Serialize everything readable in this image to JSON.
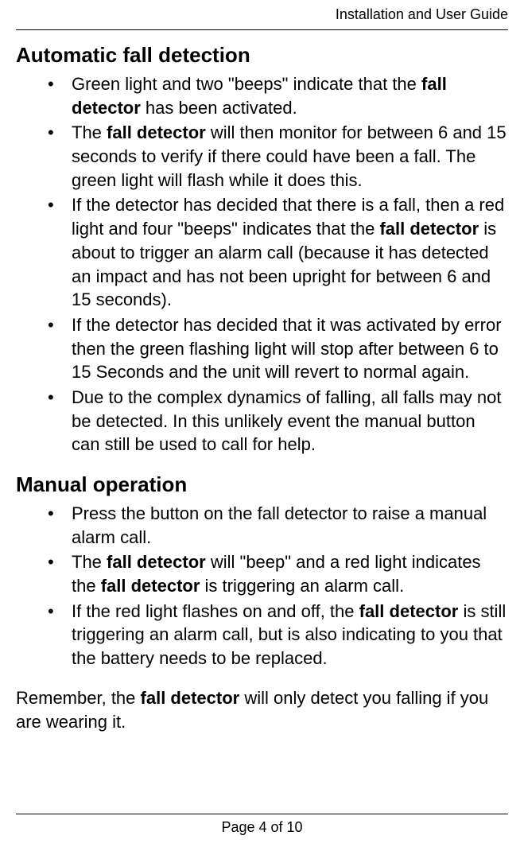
{
  "header": {
    "title": "Installation and User Guide"
  },
  "sections": {
    "autoFall": {
      "heading": "Automatic fall detection",
      "items": {
        "i0": {
          "t0": "Green light and two \"beeps\" indicate that the ",
          "b0": "fall detector",
          "t1": " has been activated."
        },
        "i1": {
          "t0": "The ",
          "b0": "fall detector",
          "t1": " will then monitor for between 6 and 15 seconds to verify if there could have been a fall. The green light will flash while it does this."
        },
        "i2": {
          "t0": "If the detector has decided that there is a fall, then a red light and four \"beeps\" indicates that the ",
          "b0": "fall detector",
          "t1": " is about to trigger an alarm call (because it has detected an impact and has not been upright for between 6 and 15 seconds)."
        },
        "i3": {
          "t0": "If the detector has decided that it was activated by error then the green flashing light will stop after between 6 to 15 Seconds and the unit will revert to normal again."
        },
        "i4": {
          "t0": "Due to the complex dynamics of falling, all falls may not be detected. In this unlikely event the manual button can still be used to call for help."
        }
      }
    },
    "manualOp": {
      "heading": "Manual operation",
      "items": {
        "i0": {
          "t0": "Press the button on the fall detector to raise a manual alarm call."
        },
        "i1": {
          "t0": "The ",
          "b0": "fall detector",
          "t1": " will \"beep\" and a red light indicates the ",
          "b1": "fall detector",
          "t2": " is triggering an alarm call."
        },
        "i2": {
          "t0": "If the red light flashes on and off, the ",
          "b0": "fall detector",
          "t1": " is still triggering an alarm call, but is also indicating to you that the battery needs to be replaced."
        }
      }
    },
    "reminder": {
      "t0": "Remember, the ",
      "b0": "fall detector",
      "t1": " will only detect you falling if you are wearing it."
    }
  },
  "footer": {
    "pageText": "Page 4 of 10"
  }
}
